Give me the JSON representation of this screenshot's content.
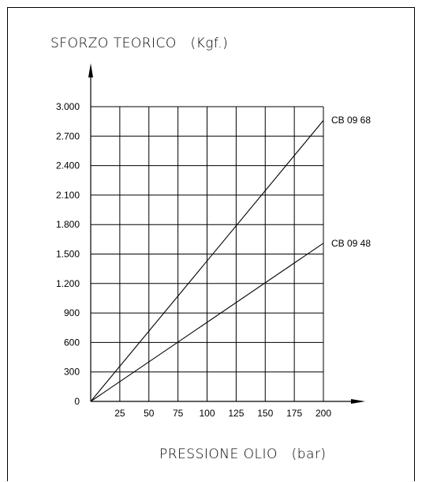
{
  "chart_data": {
    "type": "line",
    "ylabel": "SFORZO TEORICO   (Kgf.)",
    "xlabel": "PRESSIONE OLIO   (bar)",
    "x_ticks": [
      25,
      50,
      75,
      100,
      125,
      150,
      175,
      200
    ],
    "x_tick_labels": [
      "25",
      "50",
      "75",
      "100",
      "125",
      "150",
      "175",
      "200"
    ],
    "y_ticks": [
      0,
      300,
      600,
      900,
      1200,
      1500,
      1800,
      2100,
      2400,
      2700,
      3000
    ],
    "y_tick_labels": [
      "0",
      "300",
      "600",
      "900",
      "1.200",
      "1.500",
      "1.800",
      "2.100",
      "2.400",
      "2.700",
      "3.000"
    ],
    "xlim": [
      0,
      200
    ],
    "ylim": [
      0,
      3000
    ],
    "grid": true,
    "series": [
      {
        "name": "CB 09 68",
        "x": [
          0,
          200
        ],
        "y": [
          0,
          2860
        ]
      },
      {
        "name": "CB 09 48",
        "x": [
          0,
          200
        ],
        "y": [
          0,
          1610
        ]
      }
    ]
  }
}
